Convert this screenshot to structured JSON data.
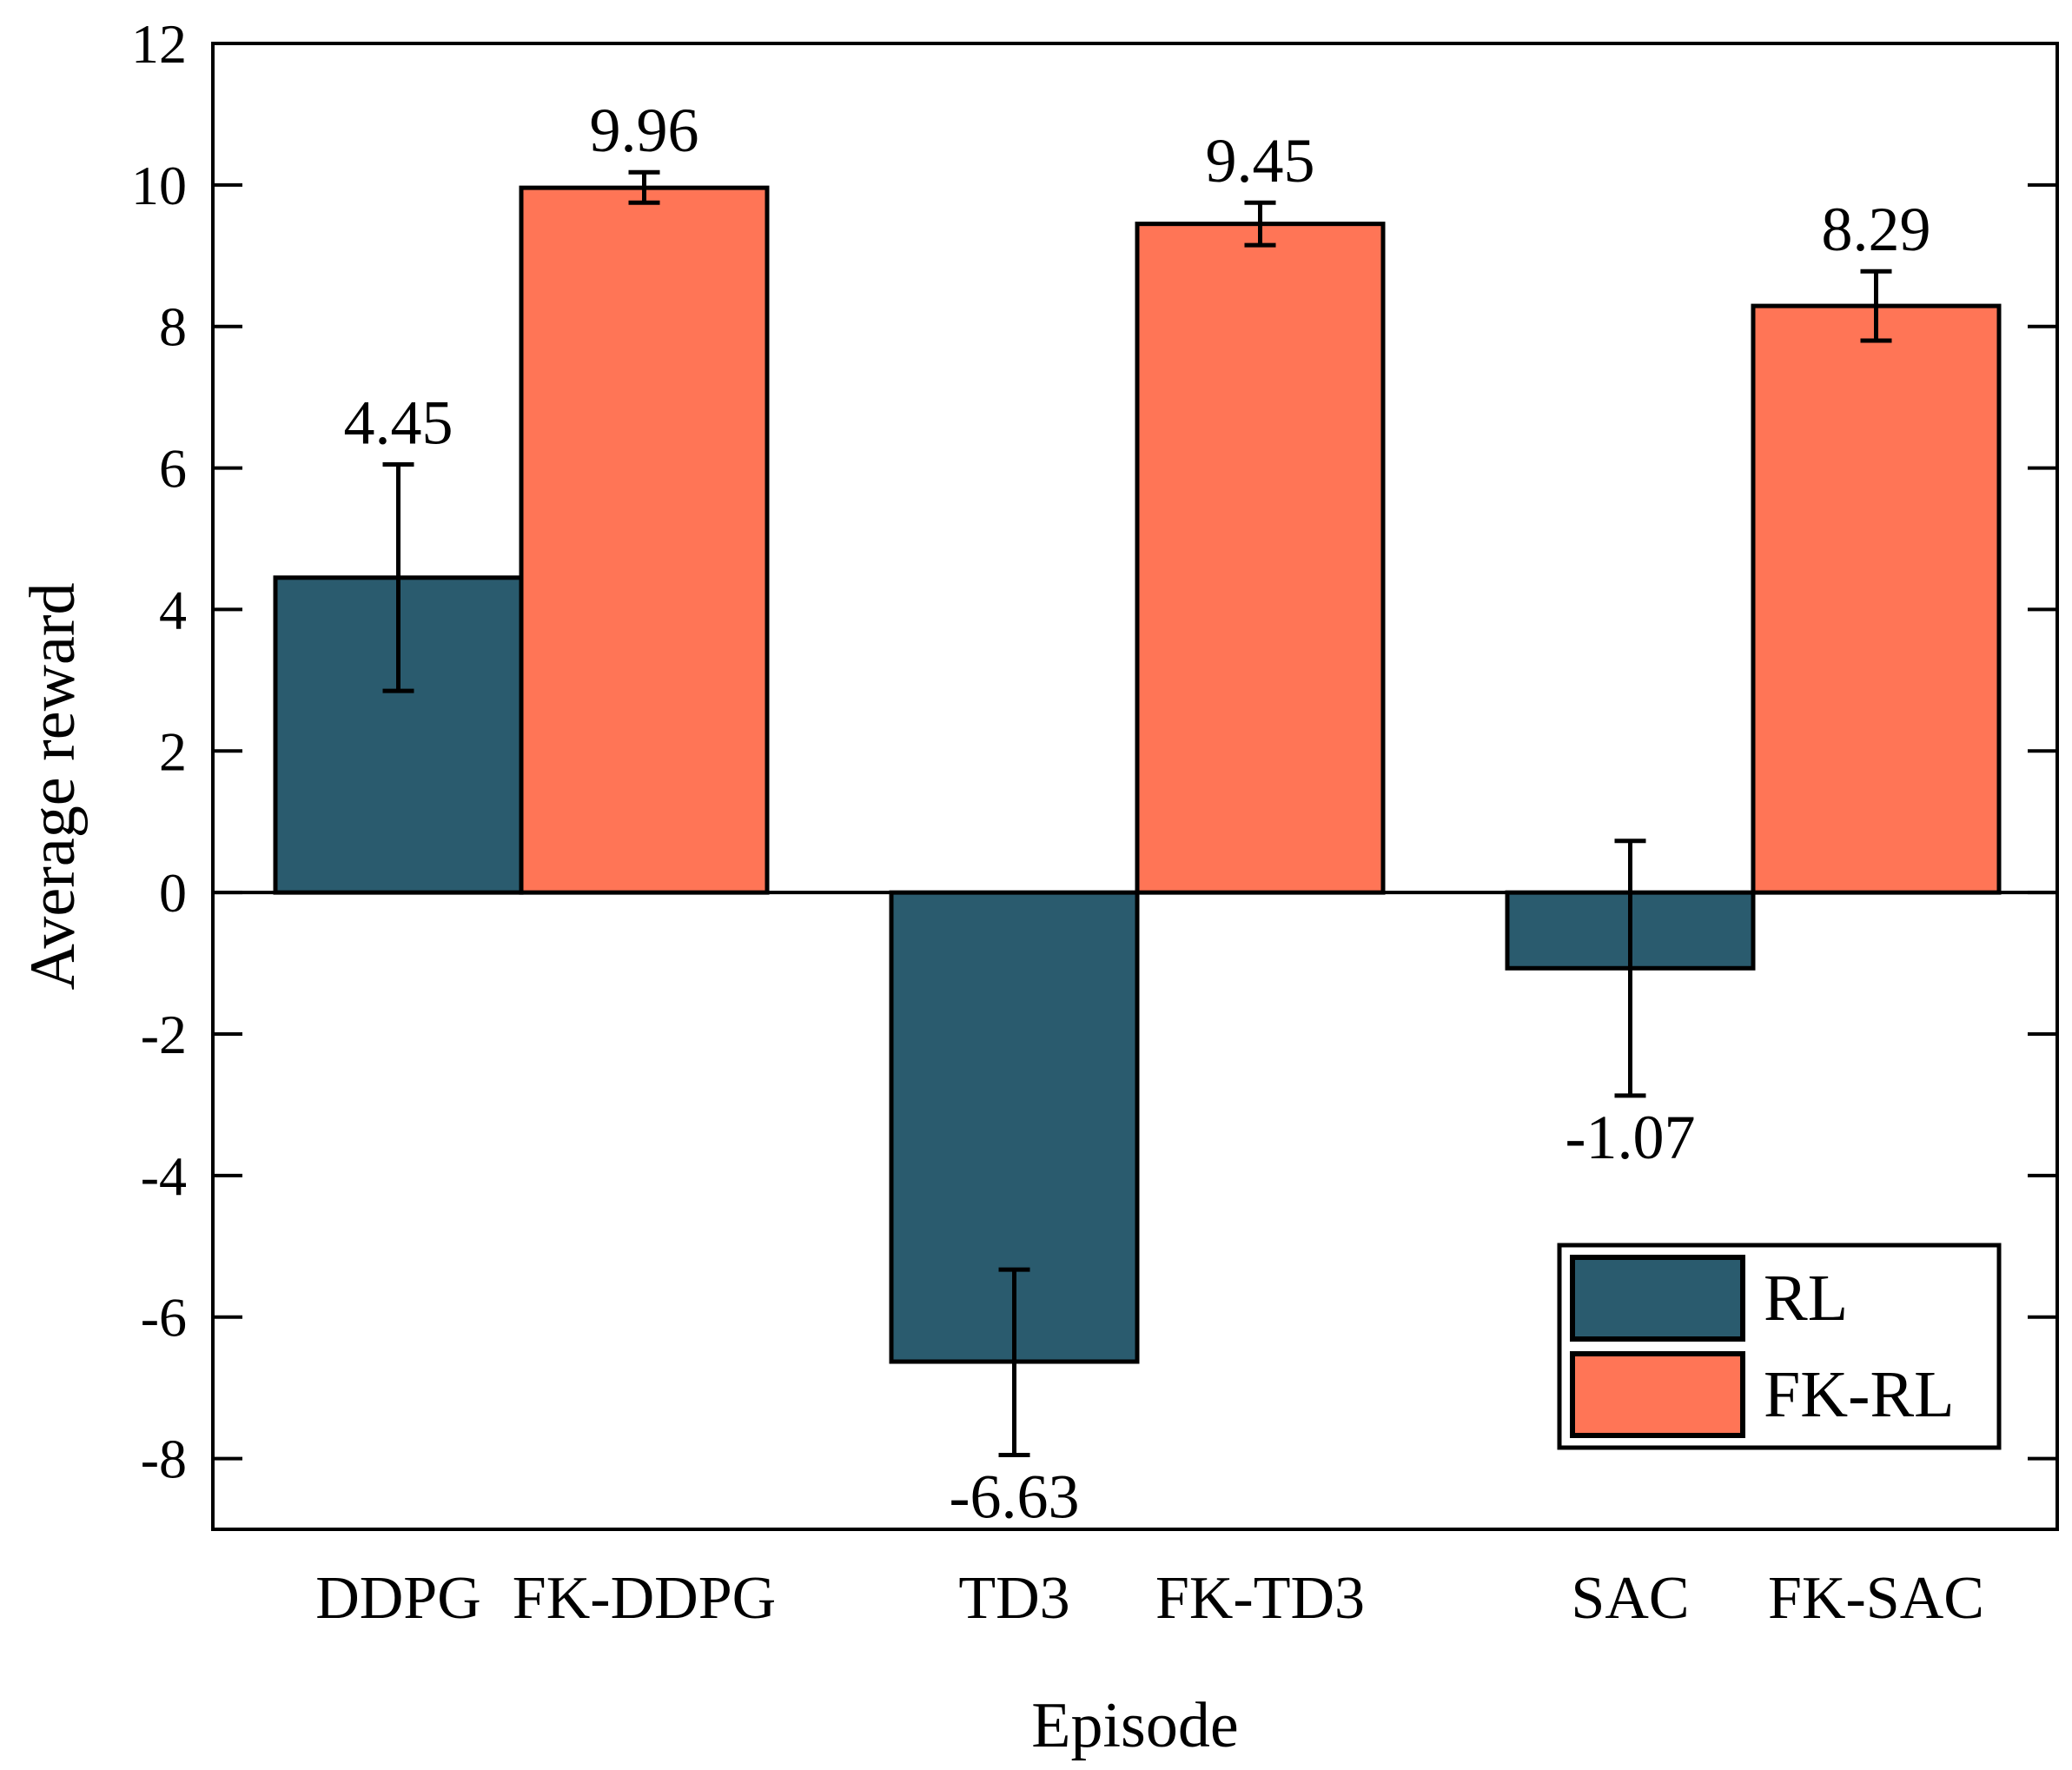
{
  "chart_data": {
    "type": "bar",
    "title": "",
    "xlabel": "Episode",
    "ylabel": "Average reward",
    "ylim": [
      -9,
      12
    ],
    "yticks": [
      12,
      10,
      8,
      6,
      4,
      2,
      0,
      -2,
      -4,
      -6,
      -8
    ],
    "ytick_labels": [
      "12",
      "10",
      "8",
      "6",
      "4",
      "2",
      "0",
      "-2",
      "-4",
      "-6",
      "-8"
    ],
    "grid": false,
    "groups": [
      "DDPG",
      "TD3",
      "SAC"
    ],
    "bars": [
      {
        "category": "DDPG",
        "series": "RL",
        "value": 4.45,
        "err_low": 2.85,
        "err_high": 6.05,
        "value_label": "4.45"
      },
      {
        "category": "FK-DDPG",
        "series": "FK-RL",
        "value": 9.96,
        "err_low": 9.75,
        "err_high": 10.18,
        "value_label": "9.96"
      },
      {
        "category": "TD3",
        "series": "RL",
        "value": -6.63,
        "err_low": -7.95,
        "err_high": -5.33,
        "value_label": "-6.63"
      },
      {
        "category": "FK-TD3",
        "series": "FK-RL",
        "value": 9.45,
        "err_low": 9.15,
        "err_high": 9.75,
        "value_label": "9.45"
      },
      {
        "category": "SAC",
        "series": "RL",
        "value": -1.07,
        "err_low": -2.87,
        "err_high": 0.73,
        "value_label": "-1.07"
      },
      {
        "category": "FK-SAC",
        "series": "FK-RL",
        "value": 8.29,
        "err_low": 7.8,
        "err_high": 8.78,
        "value_label": "8.29"
      }
    ],
    "legend": {
      "position": "lower-right",
      "entries": [
        {
          "name": "RL",
          "color": "#2a5b6e"
        },
        {
          "name": "FK-RL",
          "color": "#ff7556"
        }
      ]
    },
    "colors": {
      "RL": "#2a5b6e",
      "FK-RL": "#ff7556"
    }
  }
}
